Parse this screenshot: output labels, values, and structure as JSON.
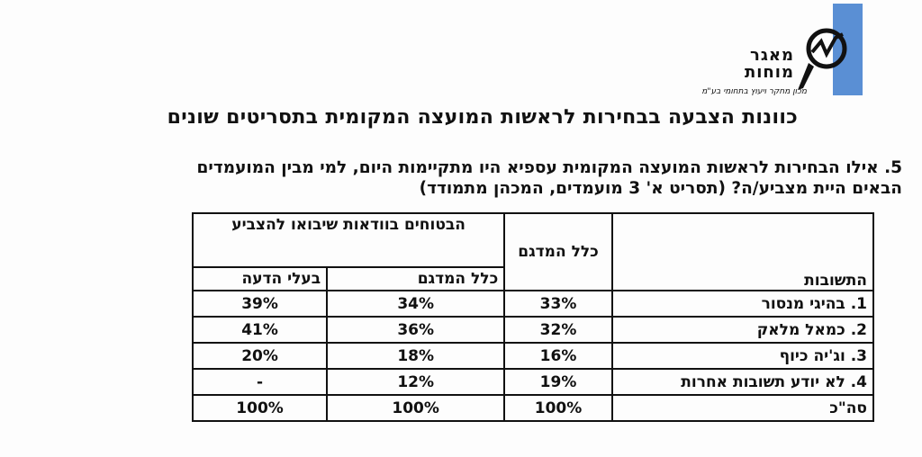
{
  "logo": {
    "name_line1": "מאגר",
    "name_line2": "מוחות",
    "tagline": "מכון מחקר ויעוץ בתחומי בע\"מ",
    "brand_color": "#5a8fd4"
  },
  "title": "כוונות הצבעה בבחירות לראשות המועצה המקומית בתסריטים שונים",
  "question": {
    "line1": "5. אילו הבחירות לראשות המועצה המקומית עספיא היו מתקיימות היום, למי מבין המועמדים",
    "line2": "הבאים היית מצביע/ה? (תסריט א' 3 מועמדים, המכהן מתמודד)"
  },
  "table": {
    "header_answer": "התשובות",
    "header_total": "כלל המדגם",
    "header_sure": "הבטוחים בוודאות שיבואו להצביע",
    "header_sure_all": "כלל המדגם",
    "header_sure_opinion": "בעלי הדעה",
    "rows": [
      {
        "answer": "1. בהיגי מנסור",
        "total": "33%",
        "sure_all": "34%",
        "sure_opinion": "39%"
      },
      {
        "answer": "2. כמאל מלאק",
        "total": "32%",
        "sure_all": "36%",
        "sure_opinion": "41%"
      },
      {
        "answer": "3. וג'יה כיוף",
        "total": "16%",
        "sure_all": "18%",
        "sure_opinion": "20%"
      },
      {
        "answer": "4. לא יודע תשובות אחרות",
        "total": "19%",
        "sure_all": "12%",
        "sure_opinion": "-"
      },
      {
        "answer": "סה\"כ",
        "total": "100%",
        "sure_all": "100%",
        "sure_opinion": "100%"
      }
    ]
  }
}
